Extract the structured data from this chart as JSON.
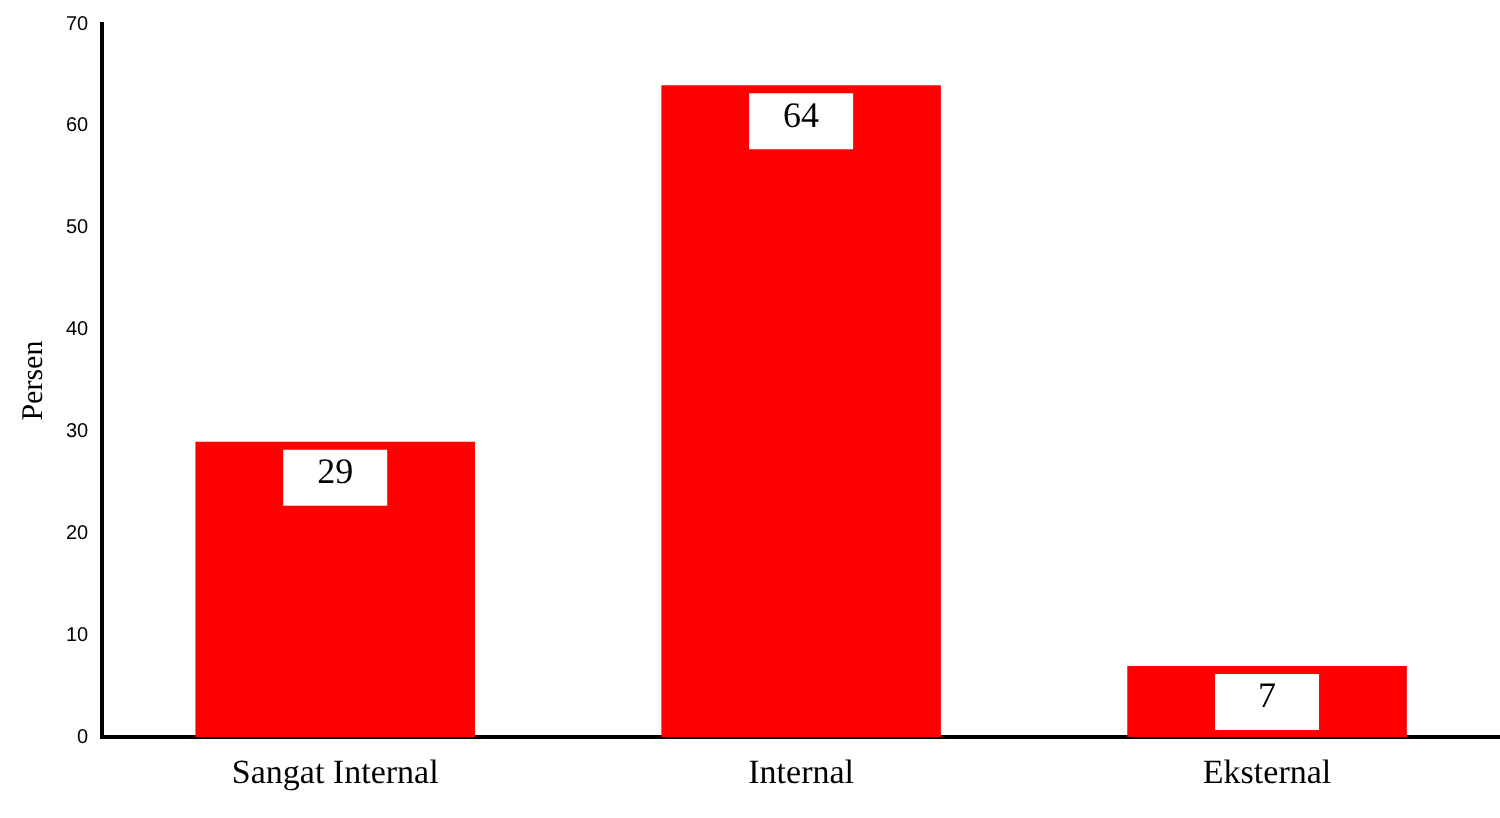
{
  "chart_data": {
    "type": "bar",
    "ylabel": "Persen",
    "categories": [
      "Sangat Internal",
      "Internal",
      "Eksternal"
    ],
    "values": [
      29,
      64,
      7
    ],
    "color": "#ff0000",
    "ylim": [
      0,
      70
    ],
    "yticks": [
      0,
      10,
      20,
      30,
      40,
      50,
      60,
      70
    ],
    "grid": false,
    "legend": false,
    "data_labels": true
  }
}
